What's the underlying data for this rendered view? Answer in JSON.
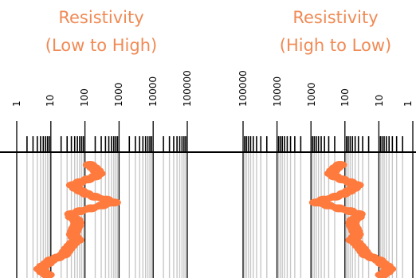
{
  "panels": [
    {
      "id": "left",
      "title_line1": "Resistivity",
      "title_line2": "(Low to High)",
      "scale_labels": [
        "1",
        "10",
        "100",
        "1000",
        "10000",
        "100000"
      ],
      "direction": "increasing"
    },
    {
      "id": "right",
      "title_line1": "Resistivity",
      "title_line2": "(High to Low)",
      "scale_labels": [
        "100000",
        "10000",
        "1000",
        "100",
        "10",
        "1"
      ],
      "direction": "decreasing"
    }
  ],
  "colors": {
    "title": "#f08a55",
    "curve": "#ff7a3d",
    "grid_major": "#000000",
    "grid_minor": "#c8c8c8"
  },
  "curve_resistivity": [
    140,
    180,
    220,
    250,
    200,
    120,
    70,
    45,
    55,
    75,
    110,
    190,
    420,
    700,
    320,
    150,
    70,
    40,
    42,
    55,
    60,
    58,
    52,
    48,
    45,
    50,
    60,
    45,
    38,
    32,
    28,
    24,
    16,
    10,
    8,
    6,
    5,
    6,
    8
  ]
}
